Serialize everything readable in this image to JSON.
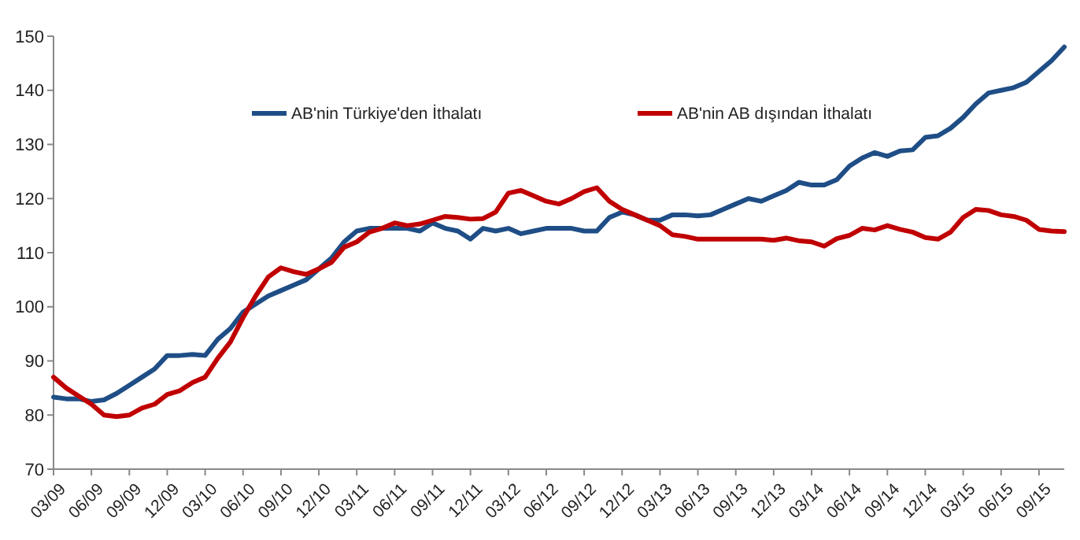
{
  "chart_data": {
    "type": "line",
    "categories": [
      "03/09",
      null,
      null,
      "06/09",
      null,
      null,
      "09/09",
      null,
      null,
      "12/09",
      null,
      null,
      "03/10",
      null,
      null,
      "06/10",
      null,
      null,
      "09/10",
      null,
      null,
      "12/10",
      null,
      null,
      "03/11",
      null,
      null,
      "06/11",
      null,
      null,
      "09/11",
      null,
      null,
      "12/11",
      null,
      null,
      "03/12",
      null,
      null,
      "06/12",
      null,
      null,
      "09/12",
      null,
      null,
      "12/12",
      null,
      null,
      "03/13",
      null,
      null,
      "06/13",
      null,
      null,
      "09/13",
      null,
      null,
      "12/13",
      null,
      null,
      "03/14",
      null,
      null,
      "06/14",
      null,
      null,
      "09/14",
      null,
      null,
      "12/14",
      null,
      null,
      "03/15",
      null,
      null,
      "06/15",
      null,
      null,
      "09/15",
      null,
      null
    ],
    "series": [
      {
        "name": "AB'nin Türkiye'den İthalatı",
        "color": "#1f4e86",
        "values": [
          83.3,
          83,
          83,
          82.5,
          82.8,
          84,
          85.5,
          87,
          88.5,
          91,
          91,
          91.2,
          91,
          94,
          96,
          99,
          100.5,
          102,
          103,
          104,
          105,
          107,
          109,
          112,
          114,
          114.5,
          114.5,
          114.5,
          114.5,
          114,
          115.5,
          114.5,
          114,
          112.5,
          114.5,
          114,
          114.5,
          113.5,
          114,
          114.5,
          114.5,
          114.5,
          114,
          114,
          116.5,
          117.5,
          117,
          116,
          116,
          117,
          117,
          116.8,
          117,
          118,
          119,
          120,
          119.5,
          120.5,
          121.5,
          123,
          122.5,
          122.5,
          123.5,
          126,
          127.5,
          128.5,
          127.8,
          128.8,
          129,
          131.3,
          131.6,
          133,
          135,
          137.5,
          139.5,
          140,
          140.5,
          141.5,
          143.5,
          145.5,
          148
        ]
      },
      {
        "name": "AB'nin AB dışından İthalatı",
        "color": "#c00000",
        "values": [
          87,
          85,
          83.5,
          82,
          80,
          79.7,
          80,
          81.3,
          82,
          83.8,
          84.5,
          86,
          87,
          90.5,
          93.5,
          98,
          102,
          105.5,
          107.2,
          106.5,
          106,
          107,
          108.2,
          111,
          112,
          113.8,
          114.5,
          115.5,
          115,
          115.3,
          116,
          116.7,
          116.5,
          116.2,
          116.3,
          117.5,
          121,
          121.5,
          120.5,
          119.5,
          119,
          120,
          121.3,
          122,
          119.5,
          118,
          117,
          116,
          115,
          113.3,
          113,
          112.5,
          112.5,
          112.5,
          112.5,
          112.5,
          112.5,
          112.3,
          112.7,
          112.2,
          112,
          111.2,
          112.6,
          113.2,
          114.5,
          114.2,
          115,
          114.3,
          113.8,
          112.8,
          112.5,
          113.8,
          116.5,
          118,
          117.8,
          117,
          116.7,
          116,
          114.3,
          114,
          113.9
        ]
      }
    ],
    "ylim": [
      70,
      150
    ],
    "yticks": [
      70,
      80,
      90,
      100,
      110,
      120,
      130,
      140,
      150
    ],
    "legend": "top",
    "marker": "none",
    "line_style": "solid"
  }
}
